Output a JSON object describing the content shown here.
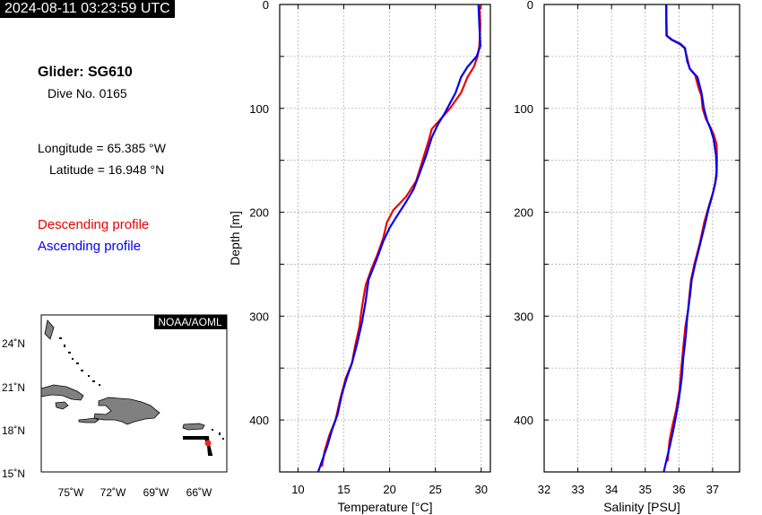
{
  "timestamp": "2024-08-11 03:23:59 UTC",
  "info": {
    "glider": "Glider: SG610",
    "dive": "Dive No. 0165",
    "longitude": "Longitude = 65.385 °W",
    "latitude": "Latitude = 16.948 °N"
  },
  "legend": {
    "descending": "Descending profile",
    "ascending": "Ascending profile"
  },
  "colors": {
    "descending": "#ee0000",
    "ascending": "#0000ee"
  },
  "map": {
    "credit": "NOAA/AOML",
    "lat_labels": [
      "24˚N",
      "21˚N",
      "18˚N",
      "15˚N"
    ],
    "lon_labels": [
      "75˚W",
      "72˚W",
      "69˚W",
      "66˚W"
    ]
  },
  "chart_data": [
    {
      "type": "line",
      "xlabel": "Temperature [°C]",
      "ylabel": "Depth [m]",
      "xlim": [
        8,
        31
      ],
      "ylim": [
        450,
        0
      ],
      "y_inverted": true,
      "xticks": [
        10,
        15,
        20,
        25,
        30
      ],
      "yticks": [
        0,
        100,
        200,
        300,
        400
      ],
      "grid": true,
      "series": [
        {
          "name": "Descending profile",
          "color": "#ee0000",
          "points": [
            [
              29.8,
              0
            ],
            [
              29.9,
              20
            ],
            [
              29.8,
              40
            ],
            [
              29.6,
              50
            ],
            [
              29.2,
              60
            ],
            [
              28.5,
              70
            ],
            [
              27.8,
              85
            ],
            [
              26.6,
              100
            ],
            [
              25.4,
              112
            ],
            [
              24.6,
              120
            ],
            [
              24.3,
              130
            ],
            [
              23.6,
              150
            ],
            [
              22.9,
              170
            ],
            [
              21.8,
              185
            ],
            [
              20.4,
              198
            ],
            [
              19.7,
              210
            ],
            [
              19.3,
              225
            ],
            [
              18.7,
              240
            ],
            [
              18.0,
              255
            ],
            [
              17.4,
              270
            ],
            [
              17.0,
              290
            ],
            [
              16.7,
              310
            ],
            [
              16.2,
              330
            ],
            [
              15.9,
              345
            ],
            [
              15.2,
              360
            ],
            [
              14.6,
              380
            ],
            [
              14.1,
              400
            ],
            [
              13.4,
              415
            ],
            [
              12.9,
              430
            ],
            [
              12.6,
              445
            ]
          ]
        },
        {
          "name": "Ascending profile",
          "color": "#0000ee",
          "points": [
            [
              29.7,
              0
            ],
            [
              29.8,
              20
            ],
            [
              29.9,
              40
            ],
            [
              29.5,
              50
            ],
            [
              28.5,
              60
            ],
            [
              27.8,
              70
            ],
            [
              27.2,
              85
            ],
            [
              26.6,
              95
            ],
            [
              26.0,
              105
            ],
            [
              25.3,
              115
            ],
            [
              24.6,
              128
            ],
            [
              24.0,
              145
            ],
            [
              23.3,
              162
            ],
            [
              22.6,
              178
            ],
            [
              21.8,
              190
            ],
            [
              20.7,
              205
            ],
            [
              20.0,
              215
            ],
            [
              19.3,
              228
            ],
            [
              18.6,
              245
            ],
            [
              17.7,
              265
            ],
            [
              17.4,
              285
            ],
            [
              17.0,
              305
            ],
            [
              16.5,
              325
            ],
            [
              15.9,
              345
            ],
            [
              15.3,
              360
            ],
            [
              14.8,
              375
            ],
            [
              14.3,
              395
            ],
            [
              13.7,
              410
            ],
            [
              13.2,
              425
            ],
            [
              12.6,
              440
            ],
            [
              12.2,
              450
            ]
          ]
        }
      ]
    },
    {
      "type": "line",
      "xlabel": "Salinity [PSU]",
      "ylabel": "",
      "xlim": [
        32,
        37.8
      ],
      "ylim": [
        450,
        0
      ],
      "y_inverted": true,
      "xticks": [
        32,
        33,
        34,
        35,
        36,
        37
      ],
      "yticks": [
        0,
        100,
        200,
        300,
        400
      ],
      "grid": true,
      "series": [
        {
          "name": "Descending profile",
          "color": "#ee0000",
          "points": [
            [
              35.63,
              0
            ],
            [
              35.62,
              15
            ],
            [
              35.63,
              30
            ],
            [
              35.78,
              34
            ],
            [
              36.02,
              38
            ],
            [
              36.17,
              42
            ],
            [
              36.27,
              55
            ],
            [
              36.32,
              62
            ],
            [
              36.48,
              68
            ],
            [
              36.58,
              80
            ],
            [
              36.67,
              88
            ],
            [
              36.7,
              100
            ],
            [
              36.8,
              110
            ],
            [
              36.93,
              118
            ],
            [
              37.03,
              125
            ],
            [
              37.12,
              135
            ],
            [
              37.13,
              150
            ],
            [
              37.12,
              165
            ],
            [
              37.02,
              180
            ],
            [
              36.88,
              195
            ],
            [
              36.75,
              210
            ],
            [
              36.62,
              230
            ],
            [
              36.46,
              250
            ],
            [
              36.36,
              265
            ],
            [
              36.31,
              280
            ],
            [
              36.27,
              295
            ],
            [
              36.19,
              310
            ],
            [
              36.13,
              330
            ],
            [
              36.07,
              350
            ],
            [
              36.02,
              370
            ],
            [
              35.92,
              390
            ],
            [
              35.81,
              405
            ],
            [
              35.72,
              420
            ],
            [
              35.66,
              440
            ]
          ]
        },
        {
          "name": "Ascending profile",
          "color": "#0000ee",
          "points": [
            [
              35.62,
              0
            ],
            [
              35.63,
              15
            ],
            [
              35.64,
              30
            ],
            [
              35.8,
              34
            ],
            [
              36.05,
              38
            ],
            [
              36.18,
              42
            ],
            [
              36.25,
              55
            ],
            [
              36.33,
              62
            ],
            [
              36.55,
              70
            ],
            [
              36.67,
              85
            ],
            [
              36.74,
              100
            ],
            [
              36.84,
              112
            ],
            [
              36.94,
              120
            ],
            [
              37.03,
              130
            ],
            [
              37.1,
              145
            ],
            [
              37.12,
              160
            ],
            [
              37.08,
              172
            ],
            [
              36.98,
              185
            ],
            [
              36.87,
              198
            ],
            [
              36.77,
              212
            ],
            [
              36.62,
              232
            ],
            [
              36.48,
              250
            ],
            [
              36.38,
              265
            ],
            [
              36.33,
              280
            ],
            [
              36.25,
              300
            ],
            [
              36.2,
              320
            ],
            [
              36.13,
              340
            ],
            [
              36.08,
              360
            ],
            [
              36.0,
              380
            ],
            [
              35.92,
              395
            ],
            [
              35.83,
              410
            ],
            [
              35.73,
              425
            ],
            [
              35.62,
              440
            ],
            [
              35.55,
              450
            ]
          ]
        }
      ]
    }
  ]
}
